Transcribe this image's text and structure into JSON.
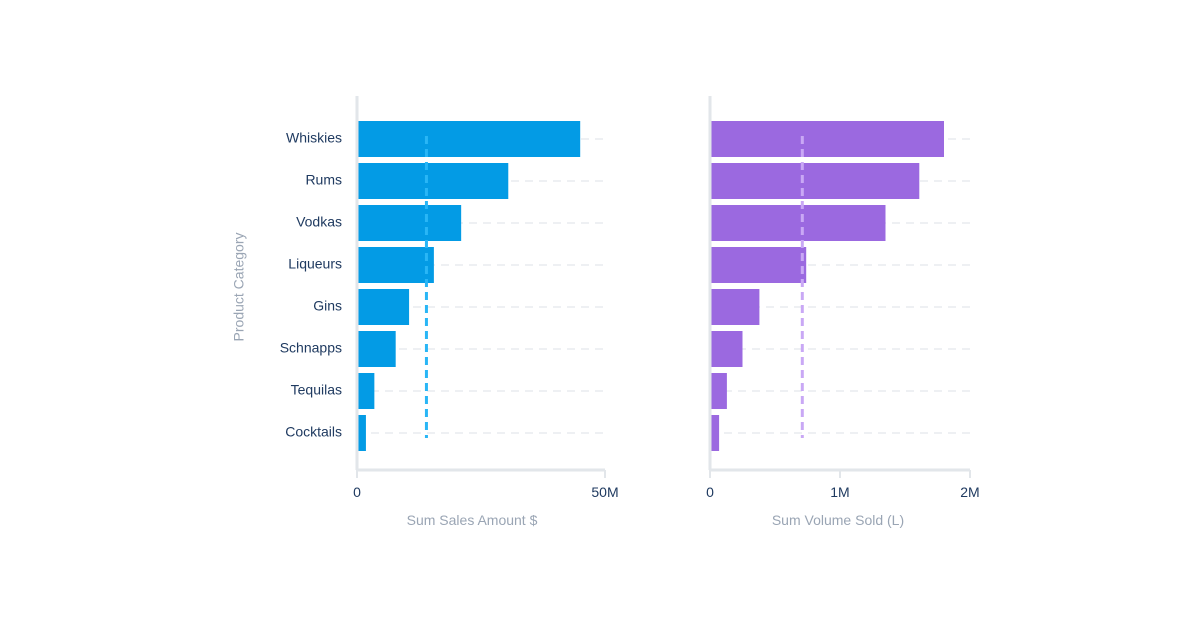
{
  "chart_data": {
    "type": "bar",
    "orientation": "horizontal",
    "y_axis_label": "Product Category",
    "categories": [
      "Whiskies",
      "Rums",
      "Vodkas",
      "Liqueurs",
      "Gins",
      "Schnapps",
      "Tequilas",
      "Cocktails"
    ],
    "grid": "dashed horizontal gridlines",
    "panels": [
      {
        "name": "sales",
        "xlabel": "Sum Sales Amount $",
        "xlim": [
          0,
          50000000
        ],
        "tick_values": [
          0,
          50000000
        ],
        "tick_labels": [
          "0",
          "50M"
        ],
        "color": "#039be5",
        "reference_line": {
          "value": 14000000,
          "color": "#29b6f6",
          "style": "dashed"
        },
        "values": [
          45000000,
          30500000,
          21000000,
          15500000,
          10500000,
          7800000,
          3500000,
          1800000
        ]
      },
      {
        "name": "volume",
        "xlabel": "Sum Volume Sold (L)",
        "xlim": [
          0,
          2000000
        ],
        "tick_values": [
          0,
          1000000,
          2000000
        ],
        "tick_labels": [
          "0",
          "1M",
          "2M"
        ],
        "color": "#9b69e0",
        "reference_line": {
          "value": 710000,
          "color": "#c9a8f5",
          "style": "dashed"
        },
        "values": [
          1800000,
          1610000,
          1350000,
          740000,
          380000,
          250000,
          130000,
          70000
        ]
      }
    ]
  }
}
